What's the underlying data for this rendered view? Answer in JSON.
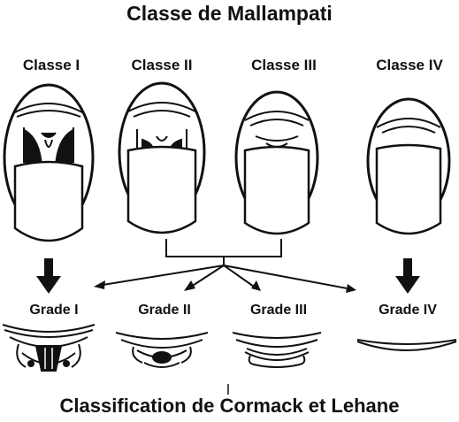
{
  "title": "Classe de Mallampati",
  "footer": "Classification de Cormack et Lehane",
  "mallampati": [
    "Classe I",
    "Classe II",
    "Classe III",
    "Classe IV"
  ],
  "cormack": [
    "Grade I",
    "Grade II",
    "Grade III",
    "Grade IV"
  ],
  "colors": {
    "ink": "#111111",
    "background": "#ffffff"
  }
}
